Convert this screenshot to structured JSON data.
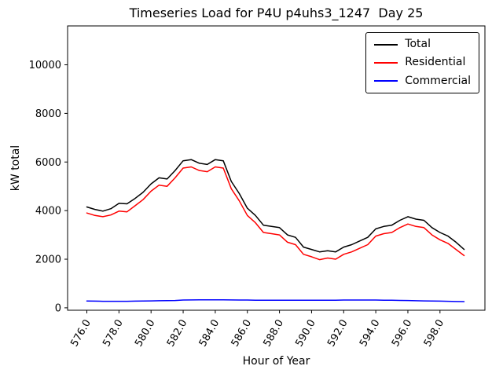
{
  "title": "Timeseries Load for P4U p4uhs3_1247  Day 25",
  "xlabel": "Hour of Year",
  "ylabel": "kW total",
  "legend": {
    "position": "upper right",
    "entries": [
      {
        "label": "Total",
        "color": "#000000"
      },
      {
        "label": "Residential",
        "color": "#ff0000"
      },
      {
        "label": "Commercial",
        "color": "#0000ff"
      }
    ]
  },
  "chart_data": {
    "type": "line",
    "title": "Timeseries Load for P4U p4uhs3_1247  Day 25",
    "xlabel": "Hour of Year",
    "ylabel": "kW total",
    "grid": false,
    "legend_position": "upper right",
    "xlim": [
      574.8,
      600.8
    ],
    "ylim": [
      -100,
      11600
    ],
    "xticks": [
      576,
      578,
      580,
      582,
      584,
      586,
      588,
      590,
      592,
      594,
      596,
      598
    ],
    "xtick_labels": [
      "576.0",
      "578.0",
      "580.0",
      "582.0",
      "584.0",
      "586.0",
      "588.0",
      "590.0",
      "592.0",
      "594.0",
      "596.0",
      "598.0"
    ],
    "yticks": [
      0,
      2000,
      4000,
      6000,
      8000,
      10000
    ],
    "ytick_labels": [
      "0",
      "2000",
      "4000",
      "6000",
      "8000",
      "10000"
    ],
    "x": [
      576,
      576.5,
      577,
      577.5,
      578,
      578.5,
      579,
      579.5,
      580,
      580.5,
      581,
      581.5,
      582,
      582.5,
      583,
      583.5,
      584,
      584.5,
      585,
      585.5,
      586,
      586.5,
      587,
      587.5,
      588,
      588.5,
      589,
      589.5,
      590,
      590.5,
      591,
      591.5,
      592,
      592.5,
      593,
      593.5,
      594,
      594.5,
      595,
      595.5,
      596,
      596.5,
      597,
      597.5,
      598,
      598.5,
      599,
      599.5
    ],
    "series": [
      {
        "name": "Total",
        "color": "#000000",
        "values": [
          4150,
          4050,
          3980,
          4080,
          4300,
          4280,
          4500,
          4750,
          5100,
          5350,
          5300,
          5650,
          6050,
          6100,
          5950,
          5900,
          6100,
          6050,
          5200,
          4700,
          4100,
          3800,
          3400,
          3350,
          3300,
          3000,
          2900,
          2500,
          2400,
          2300,
          2350,
          2300,
          2500,
          2600,
          2750,
          2900,
          3250,
          3350,
          3400,
          3600,
          3750,
          3650,
          3600,
          3300,
          3100,
          2950,
          2700,
          2400
        ]
      },
      {
        "name": "Residential",
        "color": "#ff0000",
        "values": [
          3900,
          3800,
          3750,
          3820,
          3980,
          3950,
          4200,
          4450,
          4800,
          5050,
          5000,
          5350,
          5750,
          5800,
          5650,
          5600,
          5800,
          5750,
          4900,
          4400,
          3800,
          3500,
          3100,
          3050,
          3000,
          2700,
          2600,
          2200,
          2100,
          1980,
          2050,
          2000,
          2200,
          2300,
          2450,
          2600,
          2950,
          3050,
          3100,
          3300,
          3450,
          3350,
          3300,
          3000,
          2800,
          2650,
          2400,
          2150
        ]
      },
      {
        "name": "Commercial",
        "color": "#0000ff",
        "values": [
          280,
          275,
          270,
          270,
          270,
          270,
          275,
          280,
          285,
          290,
          295,
          300,
          320,
          325,
          330,
          330,
          330,
          330,
          325,
          320,
          320,
          315,
          315,
          315,
          315,
          315,
          315,
          310,
          310,
          310,
          315,
          315,
          320,
          320,
          320,
          320,
          320,
          315,
          310,
          305,
          300,
          290,
          285,
          280,
          275,
          270,
          260,
          255
        ]
      }
    ]
  }
}
